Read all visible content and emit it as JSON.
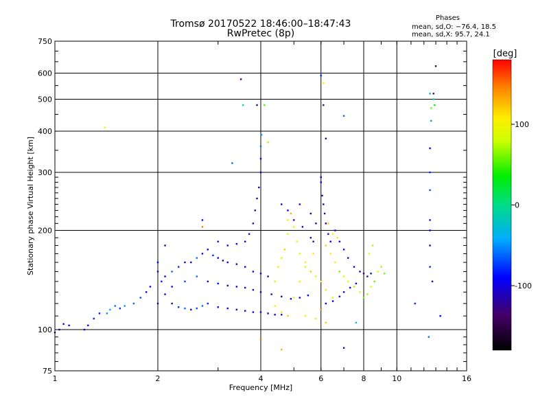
{
  "chart_data": {
    "type": "scatter",
    "title": "Tromsø 20170522 18:46:00–18:47:43",
    "subtitle": "RwPretec (8p)",
    "xlabel": "Frequency [MHz]",
    "ylabel": "Stationary phase Virtual Height [km]",
    "x_scale": "log",
    "y_scale": "log",
    "xlim": [
      1,
      16
    ],
    "ylim": [
      75,
      750
    ],
    "x_ticks": [
      1,
      2,
      4,
      6,
      8,
      10,
      16
    ],
    "y_ticks": [
      75,
      100,
      200,
      300,
      400,
      500,
      600,
      750
    ],
    "grid": true,
    "colorbar": {
      "label": "[deg]",
      "range": [
        -180,
        180
      ],
      "ticks": [
        100,
        0,
        -100
      ]
    },
    "phases_title": "Phases",
    "phases_o": "mean, sd,O: −76.4, 18.5",
    "phases_x": "mean, sd,X:  95.7, 24.1",
    "series": [
      {
        "points": [
          [
            1.0,
            98,
            -120
          ],
          [
            1.03,
            100,
            -110
          ],
          [
            1.06,
            104,
            -100
          ],
          [
            1.1,
            103,
            -95
          ],
          [
            1.22,
            100,
            -105
          ],
          [
            1.25,
            103,
            -90
          ],
          [
            1.3,
            108,
            -80
          ],
          [
            1.35,
            112,
            -85
          ],
          [
            1.42,
            112,
            -50
          ],
          [
            1.45,
            115,
            -40
          ],
          [
            1.5,
            118,
            -60
          ],
          [
            1.55,
            116,
            -80
          ],
          [
            1.6,
            118,
            -50
          ],
          [
            1.7,
            120,
            -60
          ],
          [
            1.78,
            125,
            -70
          ],
          [
            1.85,
            130,
            -90
          ],
          [
            1.9,
            135,
            -100
          ],
          [
            2.0,
            120,
            -110
          ],
          [
            2.0,
            150,
            -100
          ],
          [
            2.0,
            160,
            -90
          ],
          [
            2.05,
            140,
            -80
          ],
          [
            2.1,
            128,
            -100
          ],
          [
            2.2,
            120,
            -110
          ],
          [
            2.3,
            117,
            -80
          ],
          [
            2.4,
            116,
            -60
          ],
          [
            2.5,
            115,
            -100
          ],
          [
            2.6,
            116,
            -70
          ],
          [
            2.7,
            118,
            -60
          ],
          [
            2.8,
            120,
            -80
          ],
          [
            3.0,
            117,
            -100
          ],
          [
            3.2,
            116,
            -100
          ],
          [
            3.4,
            115,
            -110
          ],
          [
            3.6,
            114,
            -115
          ],
          [
            3.8,
            113,
            -100
          ],
          [
            4.0,
            113,
            -110
          ],
          [
            4.2,
            112,
            -105
          ],
          [
            4.4,
            111,
            -100
          ],
          [
            4.6,
            111,
            -90
          ],
          [
            2.1,
            145,
            -90
          ],
          [
            2.2,
            150,
            -60
          ],
          [
            2.3,
            155,
            -80
          ],
          [
            2.4,
            160,
            -110
          ],
          [
            2.5,
            160,
            -100
          ],
          [
            2.6,
            165,
            -60
          ],
          [
            2.7,
            170,
            -100
          ],
          [
            2.8,
            175,
            -110
          ],
          [
            2.9,
            168,
            -80
          ],
          [
            3.0,
            165,
            -100
          ],
          [
            3.1,
            162,
            -110
          ],
          [
            3.2,
            160,
            -105
          ],
          [
            3.4,
            158,
            -110
          ],
          [
            3.6,
            155,
            -100
          ],
          [
            3.8,
            150,
            -110
          ],
          [
            4.0,
            148,
            -100
          ],
          [
            4.2,
            145,
            -110
          ],
          [
            2.2,
            135,
            -100
          ],
          [
            2.4,
            140,
            -70
          ],
          [
            2.6,
            145,
            -60
          ],
          [
            2.8,
            140,
            -100
          ],
          [
            3.0,
            138,
            -90
          ],
          [
            3.2,
            136,
            -110
          ],
          [
            3.4,
            135,
            -100
          ],
          [
            3.6,
            134,
            -100
          ],
          [
            3.8,
            132,
            -110
          ],
          [
            4.0,
            130,
            -105
          ],
          [
            4.3,
            128,
            -110
          ],
          [
            4.6,
            126,
            -100
          ],
          [
            4.9,
            124,
            -110
          ],
          [
            5.2,
            125,
            -100
          ],
          [
            5.5,
            127,
            -90
          ],
          [
            3.0,
            185,
            -110
          ],
          [
            3.2,
            180,
            -105
          ],
          [
            3.4,
            182,
            -100
          ],
          [
            3.6,
            185,
            -110
          ],
          [
            3.7,
            195,
            -115
          ],
          [
            3.8,
            210,
            -110
          ],
          [
            3.85,
            230,
            -120
          ],
          [
            3.9,
            250,
            -110
          ],
          [
            3.95,
            270,
            -100
          ],
          [
            4.0,
            300,
            -110
          ],
          [
            4.0,
            330,
            -95
          ],
          [
            4.0,
            360,
            -60
          ],
          [
            4.02,
            390,
            -50
          ],
          [
            3.9,
            480,
            -110
          ],
          [
            3.5,
            575,
            -140
          ],
          [
            3.55,
            480,
            -20
          ],
          [
            3.3,
            320,
            -60
          ],
          [
            2.7,
            215,
            -90
          ],
          [
            2.1,
            180,
            -120
          ],
          [
            4.6,
            240,
            -90
          ],
          [
            4.8,
            230,
            -100
          ],
          [
            5.0,
            215,
            -110
          ],
          [
            5.3,
            205,
            -100
          ],
          [
            5.6,
            190,
            -110
          ],
          [
            5.7,
            185,
            -120
          ],
          [
            5.2,
            240,
            -100
          ],
          [
            5.6,
            225,
            -110
          ],
          [
            5.8,
            210,
            -105
          ],
          [
            6.0,
            290,
            -110
          ],
          [
            6.0,
            280,
            -100
          ],
          [
            6.05,
            255,
            -120
          ],
          [
            6.1,
            240,
            -110
          ],
          [
            6.15,
            225,
            -120
          ],
          [
            6.2,
            210,
            -110
          ],
          [
            6.3,
            195,
            -105
          ],
          [
            6.4,
            185,
            -100
          ],
          [
            6.2,
            380,
            -120
          ],
          [
            6.1,
            480,
            -130
          ],
          [
            6.0,
            590,
            -80
          ],
          [
            6.6,
            200,
            -100
          ],
          [
            6.8,
            185,
            -90
          ],
          [
            7.0,
            175,
            -100
          ],
          [
            7.2,
            165,
            -110
          ],
          [
            7.5,
            155,
            -120
          ],
          [
            7.8,
            150,
            -110
          ],
          [
            8.0,
            148,
            -130
          ],
          [
            8.2,
            145,
            -110
          ],
          [
            8.4,
            148,
            -105
          ],
          [
            6.2,
            120,
            -100
          ],
          [
            6.5,
            122,
            -110
          ],
          [
            6.8,
            126,
            -100
          ],
          [
            7.0,
            130,
            -110
          ],
          [
            7.3,
            134,
            -100
          ],
          [
            7.6,
            138,
            -95
          ],
          [
            7.0,
            445,
            -60
          ],
          [
            7.6,
            105,
            -30
          ],
          [
            7.0,
            88,
            -120
          ],
          [
            11.3,
            120,
            -80
          ],
          [
            12.4,
            95,
            -60
          ],
          [
            12.5,
            520,
            -40
          ],
          [
            12.8,
            500,
            -10
          ],
          [
            13.0,
            630,
            -150
          ],
          [
            12.6,
            430,
            -50
          ],
          [
            12.5,
            355,
            -90
          ],
          [
            12.5,
            300,
            -80
          ],
          [
            12.5,
            265,
            -70
          ],
          [
            12.5,
            215,
            -100
          ],
          [
            12.5,
            200,
            -90
          ],
          [
            12.5,
            180,
            -100
          ],
          [
            12.5,
            155,
            -80
          ],
          [
            12.7,
            140,
            -100
          ],
          [
            13.4,
            110,
            -90
          ],
          [
            12.8,
            520,
            -140
          ],
          [
            4.4,
            140,
            80
          ],
          [
            4.5,
            155,
            110
          ],
          [
            4.6,
            165,
            90
          ],
          [
            4.7,
            175,
            120
          ],
          [
            4.8,
            195,
            100
          ],
          [
            4.8,
            215,
            110
          ],
          [
            4.9,
            225,
            130
          ],
          [
            5.0,
            205,
            90
          ],
          [
            5.1,
            185,
            100
          ],
          [
            5.2,
            170,
            80
          ],
          [
            5.4,
            160,
            110
          ],
          [
            5.6,
            150,
            120
          ],
          [
            5.8,
            145,
            90
          ],
          [
            6.0,
            140,
            100
          ],
          [
            6.2,
            132,
            110
          ],
          [
            6.5,
            125,
            80
          ],
          [
            4.4,
            118,
            100
          ],
          [
            4.6,
            113,
            110
          ],
          [
            4.8,
            110,
            120
          ],
          [
            5.0,
            125,
            90
          ],
          [
            5.2,
            140,
            100
          ],
          [
            5.4,
            155,
            80
          ],
          [
            5.7,
            170,
            110
          ],
          [
            6.2,
            180,
            120
          ],
          [
            6.4,
            170,
            100
          ],
          [
            6.6,
            160,
            90
          ],
          [
            6.8,
            150,
            60
          ],
          [
            7.0,
            145,
            80
          ],
          [
            7.2,
            140,
            90
          ],
          [
            7.5,
            135,
            70
          ],
          [
            7.8,
            130,
            80
          ],
          [
            8.0,
            125,
            60
          ],
          [
            8.2,
            128,
            70
          ],
          [
            8.4,
            135,
            80
          ],
          [
            8.6,
            140,
            60
          ],
          [
            8.8,
            150,
            80
          ],
          [
            9.0,
            155,
            70
          ],
          [
            9.2,
            148,
            60
          ],
          [
            8.3,
            170,
            80
          ],
          [
            8.5,
            180,
            70
          ],
          [
            6.3,
            210,
            120
          ],
          [
            6.5,
            195,
            100
          ],
          [
            6.7,
            190,
            110
          ],
          [
            6.1,
            560,
            110
          ],
          [
            4.6,
            87,
            130
          ],
          [
            4.0,
            94,
            150
          ],
          [
            2.7,
            205,
            150
          ],
          [
            1.4,
            410,
            100
          ],
          [
            6.2,
            105,
            120
          ],
          [
            6.0,
            115,
            140
          ],
          [
            5.8,
            108,
            110
          ],
          [
            5.4,
            110,
            100
          ],
          [
            4.1,
            480,
            50
          ],
          [
            4.2,
            370,
            70
          ],
          [
            12.6,
            470,
            60
          ],
          [
            12.9,
            480,
            30
          ]
        ]
      }
    ]
  }
}
